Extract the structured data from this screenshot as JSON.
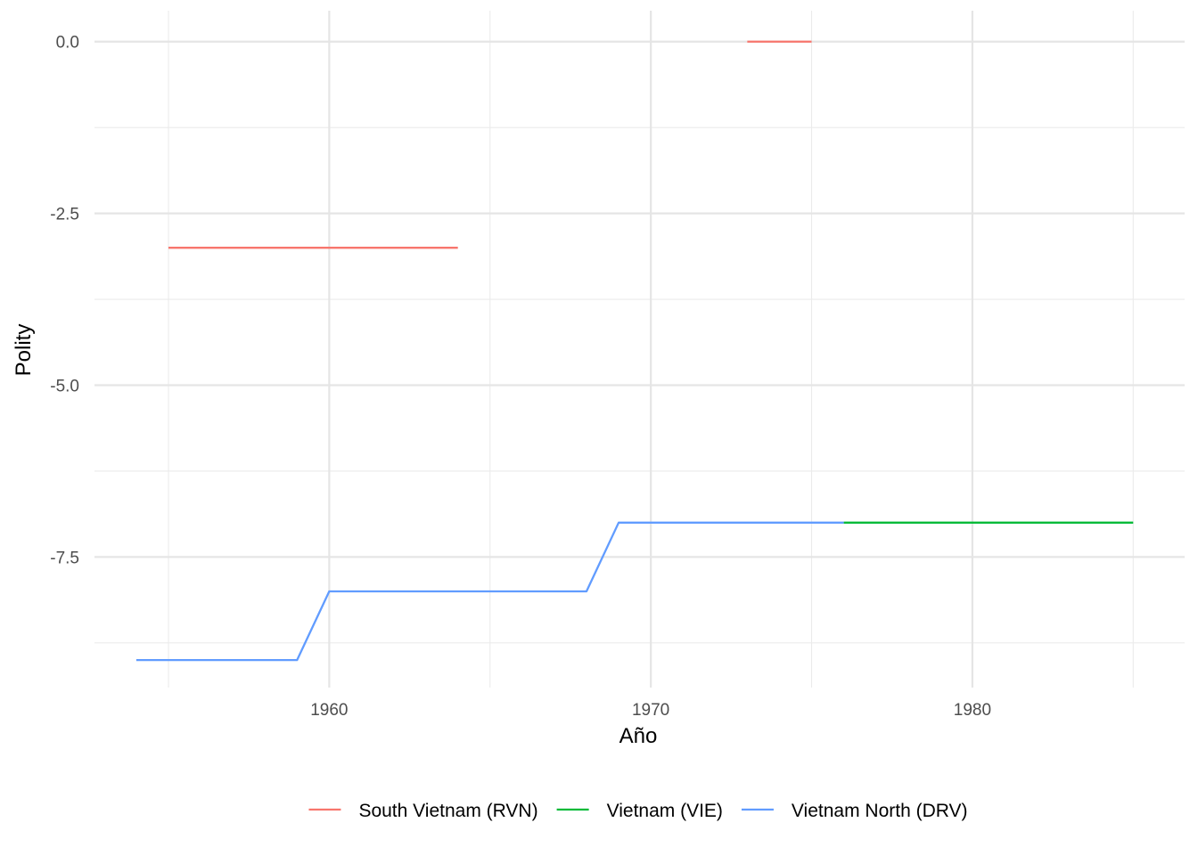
{
  "chart_data": {
    "type": "line",
    "title": "",
    "xlabel": "Año",
    "ylabel": "Polity",
    "xlim": [
      1952.7,
      1986.6
    ],
    "ylim": [
      -9.4,
      0.45
    ],
    "x_ticks": [
      1960,
      1970,
      1980
    ],
    "x_tick_labels": [
      "1960",
      "1970",
      "1980"
    ],
    "x_minor_ticks": [
      1955,
      1965,
      1975,
      1985
    ],
    "y_ticks": [
      0,
      -2.5,
      -5,
      -7.5
    ],
    "y_tick_labels": [
      "0.0",
      "-2.5",
      "-5.0",
      "-7.5"
    ],
    "y_minor_ticks": [
      -1.25,
      -3.75,
      -6.25,
      -8.75
    ],
    "grid": true,
    "legend_position": "bottom",
    "series": [
      {
        "name": "South Vietnam (RVN)",
        "color": "#F8766D",
        "segments": [
          [
            [
              1955,
              -3
            ],
            [
              1956,
              -3
            ],
            [
              1957,
              -3
            ],
            [
              1958,
              -3
            ],
            [
              1959,
              -3
            ],
            [
              1960,
              -3
            ],
            [
              1961,
              -3
            ],
            [
              1962,
              -3
            ],
            [
              1963,
              -3
            ],
            [
              1964,
              -3
            ]
          ],
          [
            [
              1973,
              0
            ],
            [
              1974,
              0
            ],
            [
              1975,
              0
            ]
          ]
        ]
      },
      {
        "name": "Vietnam (VIE)",
        "color": "#00BA38",
        "segments": [
          [
            [
              1976,
              -7
            ],
            [
              1977,
              -7
            ],
            [
              1978,
              -7
            ],
            [
              1979,
              -7
            ],
            [
              1980,
              -7
            ],
            [
              1981,
              -7
            ],
            [
              1982,
              -7
            ],
            [
              1983,
              -7
            ],
            [
              1984,
              -7
            ],
            [
              1985,
              -7
            ]
          ]
        ]
      },
      {
        "name": "Vietnam North (DRV)",
        "color": "#619CFF",
        "segments": [
          [
            [
              1954,
              -9
            ],
            [
              1955,
              -9
            ],
            [
              1956,
              -9
            ],
            [
              1957,
              -9
            ],
            [
              1958,
              -9
            ],
            [
              1959,
              -9
            ],
            [
              1960,
              -8
            ],
            [
              1961,
              -8
            ],
            [
              1962,
              -8
            ],
            [
              1963,
              -8
            ],
            [
              1964,
              -8
            ],
            [
              1965,
              -8
            ],
            [
              1966,
              -8
            ],
            [
              1967,
              -8
            ],
            [
              1968,
              -8
            ],
            [
              1969,
              -7
            ],
            [
              1970,
              -7
            ],
            [
              1971,
              -7
            ],
            [
              1972,
              -7
            ],
            [
              1973,
              -7
            ],
            [
              1974,
              -7
            ],
            [
              1975,
              -7
            ],
            [
              1976,
              -7
            ]
          ]
        ]
      }
    ]
  }
}
